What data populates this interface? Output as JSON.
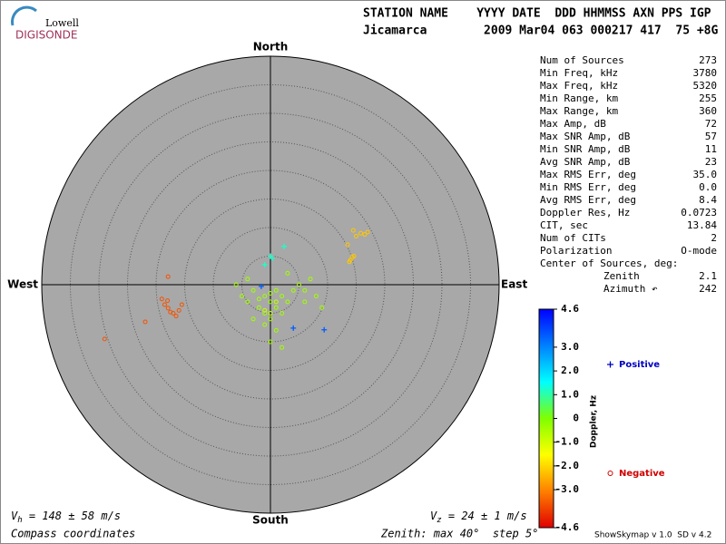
{
  "header": {
    "logo_top": "Lowell",
    "logo_bottom": "DIGISONDE",
    "line1": "STATION NAME    YYYY DATE  DDD HHMMSS AXN PPS IGP",
    "line2": "Jicamarca        2009 Mar04 063 000217 417  75 +8G"
  },
  "stats": {
    "rows": [
      [
        "Num of Sources",
        "273"
      ],
      [
        "Min Freq, kHz",
        "3780"
      ],
      [
        "Max Freq, kHz",
        "5320"
      ],
      [
        "Min Range, km",
        "255"
      ],
      [
        "Max Range, km",
        "360"
      ],
      [
        "Max Amp, dB",
        "72"
      ],
      [
        "Max SNR Amp, dB",
        "57"
      ],
      [
        "Min SNR Amp, dB",
        "11"
      ],
      [
        "Avg SNR Amp, dB",
        "23"
      ],
      [
        "Max RMS Err, deg",
        "35.0"
      ],
      [
        "Min RMS Err, deg",
        "0.0"
      ],
      [
        "Avg RMS Err, deg",
        "8.4"
      ],
      [
        "Doppler Res, Hz",
        "0.0723"
      ],
      [
        "CIT, sec",
        "13.84"
      ],
      [
        "Num of CITs",
        "2"
      ],
      [
        "Polarization",
        "O-mode"
      ]
    ],
    "center_title": "Center of Sources, deg:",
    "center_rows": [
      [
        "Zenith",
        "2.1"
      ],
      [
        "Azimuth ↶",
        "242"
      ]
    ]
  },
  "footer": {
    "vh": {
      "symbol": "V",
      "sub": "h",
      "text": " = 148 ± 58 m/s"
    },
    "vz": {
      "symbol": "V",
      "sub": "z",
      "text": " = 24 ± 1 m/s"
    },
    "coords": "Compass coordinates",
    "zenith": "Zenith: max 40°  step 5°",
    "version": "ShowSkymap v 1.0  SD v 4.2"
  },
  "chart_data": {
    "type": "skymap",
    "north": "North",
    "south": "South",
    "west": "West",
    "east": "East",
    "rlim": [
      0,
      40
    ],
    "rticks": [
      5,
      10,
      15,
      20,
      25,
      30,
      35
    ],
    "x": [
      -1,
      0,
      -2,
      1,
      2,
      -3,
      -1,
      0,
      3,
      -4,
      1,
      -2,
      4,
      5,
      6,
      -5,
      0,
      2,
      -1,
      1,
      7,
      3,
      -6,
      8,
      6,
      -3,
      0,
      2,
      9,
      -4,
      -1,
      1,
      0,
      0.3,
      2.4,
      0,
      -1,
      4,
      9.4,
      -1.6,
      15,
      15.8,
      16.5,
      14.5,
      17,
      14.3,
      14,
      14.6,
      13.8,
      13.5,
      -17.9,
      -18.5,
      -17,
      -16.5,
      -18,
      -16,
      -17.5,
      -15.5,
      -29,
      -21.9,
      -17.9,
      -19
    ],
    "y": [
      -2,
      -3,
      -4,
      -1,
      -2,
      -1,
      -5,
      -6,
      -3,
      -3,
      -4,
      -2.5,
      -1,
      0,
      -1,
      -2,
      -1.5,
      -5,
      -7,
      -8,
      1,
      2,
      0,
      -2,
      -3,
      -6,
      -10,
      -11,
      -4,
      1,
      -4.5,
      -3,
      -5,
      4.6,
      6.7,
      5,
      3.5,
      -7.6,
      -7.9,
      -0.3,
      8.5,
      9,
      8.8,
      9.5,
      9.2,
      4.8,
      4.3,
      5,
      4,
      7,
      -4.1,
      -3.5,
      -5,
      -5.5,
      -2.8,
      -4.5,
      -4.8,
      -3.5,
      -9.5,
      -6.5,
      1.4,
      -2.5
    ],
    "doppler": [
      -0.4,
      -0.4,
      -0.4,
      -0.4,
      -0.4,
      -0.4,
      -0.4,
      -0.4,
      -0.4,
      -0.4,
      -0.4,
      -0.4,
      -0.4,
      -0.4,
      -0.4,
      -0.4,
      -0.4,
      -0.4,
      -0.4,
      -0.4,
      -0.4,
      -0.4,
      -0.4,
      -0.4,
      -0.4,
      -0.4,
      -0.4,
      -0.4,
      -0.4,
      -0.4,
      -0.8,
      -0.8,
      -0.8,
      1.2,
      1.2,
      1.2,
      1.2,
      3.5,
      3.5,
      3.5,
      -2.2,
      -2.2,
      -2.2,
      -2.2,
      -2.2,
      -2.2,
      -2.2,
      -2.2,
      -2.2,
      -2.2,
      -3.6,
      -3.6,
      -3.6,
      -3.6,
      -3.6,
      -3.6,
      -3.6,
      -3.6,
      -3.6,
      -3.6,
      -3.6,
      -3.6
    ],
    "colormap": [
      "#e00000",
      "#ff8000",
      "#ffff00",
      "#80ff00",
      "#00ffff",
      "#0080ff",
      "#0000ff"
    ],
    "colorbar_label": "Doppler, Hz",
    "clim": [
      -4.6,
      4.6
    ],
    "cticks": [
      4.6,
      {
        "value": 3,
        "label": "3.0"
      },
      {
        "value": 2,
        "label": "2.0"
      },
      {
        "value": 1,
        "label": "1.0"
      },
      0,
      {
        "value": -1,
        "label": "-1.0"
      },
      {
        "value": -2,
        "label": "-2.0"
      },
      {
        "value": -3,
        "label": "-3.0"
      },
      -4.6
    ],
    "legend": [
      {
        "name": "Positive",
        "color": "#0000c0"
      },
      {
        "name": "Negative",
        "color": "#d00000"
      }
    ],
    "disc_color": "#a8a8a8"
  }
}
